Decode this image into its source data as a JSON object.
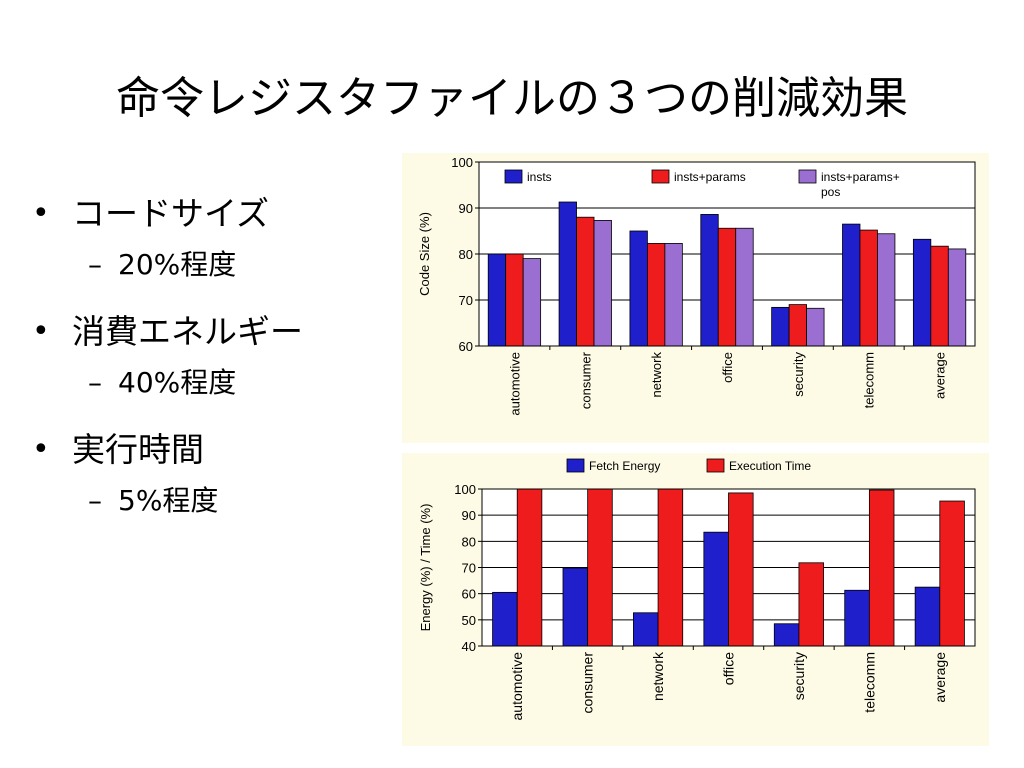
{
  "slide": {
    "title": "命令レジスタファイルの３つの削減効果",
    "bullets": [
      {
        "text": "コードサイズ",
        "sub": "20%程度"
      },
      {
        "text": "消費エネルギー",
        "sub": "40%程度"
      },
      {
        "text": "実行時間",
        "sub": "5%程度"
      }
    ],
    "bullet_symbol": "•",
    "sub_symbol": "–"
  },
  "chart_data": [
    {
      "type": "bar",
      "title": "",
      "xlabel": "",
      "ylabel": "Code Size (%)",
      "ylim": [
        60,
        100
      ],
      "yticks": [
        60,
        70,
        80,
        90,
        100
      ],
      "grid": true,
      "legend_position": "top",
      "categories": [
        "automotive",
        "consumer",
        "network",
        "office",
        "security",
        "telecomm",
        "average"
      ],
      "series": [
        {
          "name": "insts",
          "color": "#1f1fcc",
          "values": [
            80,
            91.3,
            85,
            88.6,
            68.4,
            86.5,
            83.2
          ]
        },
        {
          "name": "insts+params",
          "color": "#ee1c1c",
          "values": [
            80,
            88,
            82.3,
            85.6,
            69,
            85.2,
            81.7
          ]
        },
        {
          "name": "insts+params+\npos",
          "color": "#9b6fd1",
          "values": [
            79,
            87.3,
            82.3,
            85.6,
            68.2,
            84.4,
            81.1
          ]
        }
      ]
    },
    {
      "type": "bar",
      "title": "",
      "xlabel": "",
      "ylabel": "Energy (%) / Time (%)",
      "ylim": [
        40,
        100
      ],
      "yticks": [
        40,
        50,
        60,
        70,
        80,
        90,
        100
      ],
      "grid": true,
      "legend_position": "top",
      "categories": [
        "automotive",
        "consumer",
        "network",
        "office",
        "security",
        "telecomm",
        "average"
      ],
      "series": [
        {
          "name": "Fetch Energy",
          "color": "#1f1fcc",
          "values": [
            60.5,
            69.8,
            52.7,
            83.5,
            48.5,
            61.3,
            62.5
          ]
        },
        {
          "name": "Execution Time",
          "color": "#ee1c1c",
          "values": [
            100,
            100,
            100,
            98.5,
            71.8,
            99.6,
            95.4
          ]
        }
      ]
    }
  ]
}
